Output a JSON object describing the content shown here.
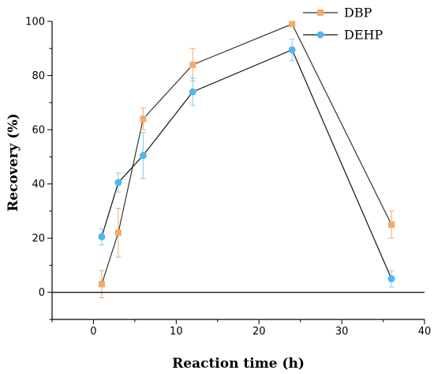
{
  "chart_data": {
    "type": "line",
    "xlabel": "Reaction time (h)",
    "ylabel": "Recovery (%)",
    "xlim": [
      -5,
      40
    ],
    "ylim": [
      -10,
      100
    ],
    "xticks": [
      0,
      10,
      20,
      30,
      40
    ],
    "yticks": [
      0,
      20,
      40,
      60,
      80,
      100
    ],
    "zero_line": true,
    "legend_position": "top-right",
    "x": [
      1,
      3,
      6,
      12,
      24,
      36
    ],
    "series": [
      {
        "name": "DBP",
        "marker": "square",
        "line_color": "#333333",
        "marker_color": "#F4A96A",
        "error_color": "#F4A96A",
        "values": [
          3,
          22,
          64,
          84,
          99,
          25
        ],
        "errors": [
          5,
          9,
          4,
          6,
          0.5,
          5
        ]
      },
      {
        "name": "DEHP",
        "marker": "circle",
        "line_color": "#111111",
        "marker_color": "#4DB8F0",
        "error_color": "#7FCBF2",
        "values": [
          20.5,
          40.5,
          50.5,
          74,
          89.5,
          5
        ],
        "errors": [
          3,
          3.5,
          8.5,
          5,
          4,
          3
        ]
      }
    ]
  }
}
